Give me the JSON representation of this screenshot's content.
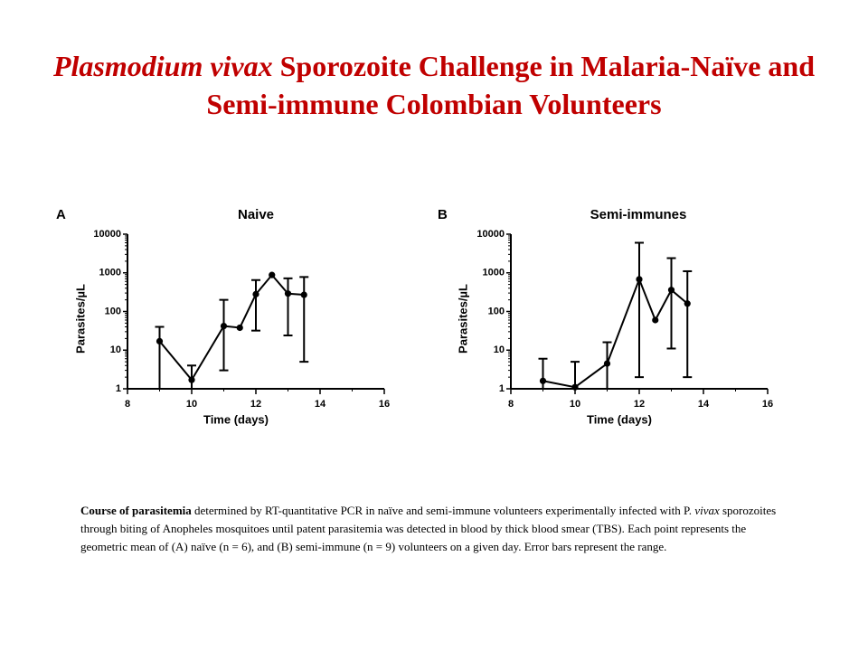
{
  "slide": {
    "title_italic": "Plasmodium vivax",
    "title_rest": " Sporozoite Challenge in Malaria-Naïve and Semi-immune Colombian Volunteers",
    "title_color": "#c00000",
    "caption": {
      "bold": "Course of parasitemia",
      "part1": " determined by RT-quantitative PCR in naïve and semi-immune volunteers experimentally infected with P. ",
      "italic": "vivax",
      "part2": " sporozoites through biting of Anopheles mosquitoes until patent parasitemia was detected in blood by thick blood smear (TBS). Each point represents the geometric mean of (A) naïve (n = 6), and (B) semi-immune (n = 9) volunteers on a given day. Error bars represent the range."
    }
  },
  "chart_data": [
    {
      "type": "line",
      "panel": "A",
      "title": "Naive",
      "xlabel": "Time (days)",
      "ylabel": "Parasites/µL",
      "xlim": [
        8,
        16
      ],
      "ylim": [
        1,
        10000
      ],
      "yscale": "log",
      "xticks": [
        "8",
        "10",
        "12",
        "14",
        "16"
      ],
      "yticks": [
        "1",
        "10",
        "100",
        "1000",
        "10000"
      ],
      "x": [
        9,
        10,
        11,
        11.5,
        12,
        12.5,
        13,
        13.5
      ],
      "y": [
        17,
        1.7,
        42,
        38,
        280,
        880,
        290,
        270
      ],
      "y_low": [
        1,
        1,
        3,
        null,
        32,
        null,
        24,
        5
      ],
      "y_high": [
        40,
        4,
        200,
        null,
        650,
        null,
        720,
        780
      ]
    },
    {
      "type": "line",
      "panel": "B",
      "title": "Semi-immunes",
      "xlabel": "Time (days)",
      "ylabel": "Parasites/µL",
      "xlim": [
        8,
        16
      ],
      "ylim": [
        1,
        10000
      ],
      "yscale": "log",
      "xticks": [
        "8",
        "10",
        "12",
        "14",
        "16"
      ],
      "yticks": [
        "1",
        "10",
        "100",
        "1000",
        "10000"
      ],
      "x": [
        9,
        10,
        11,
        12,
        12.5,
        13,
        13.5
      ],
      "y": [
        1.6,
        1.1,
        4.5,
        680,
        60,
        360,
        160
      ],
      "y_low": [
        1,
        1,
        1,
        2,
        null,
        11,
        2
      ],
      "y_high": [
        6,
        5,
        16,
        6000,
        null,
        2400,
        1100
      ]
    }
  ]
}
